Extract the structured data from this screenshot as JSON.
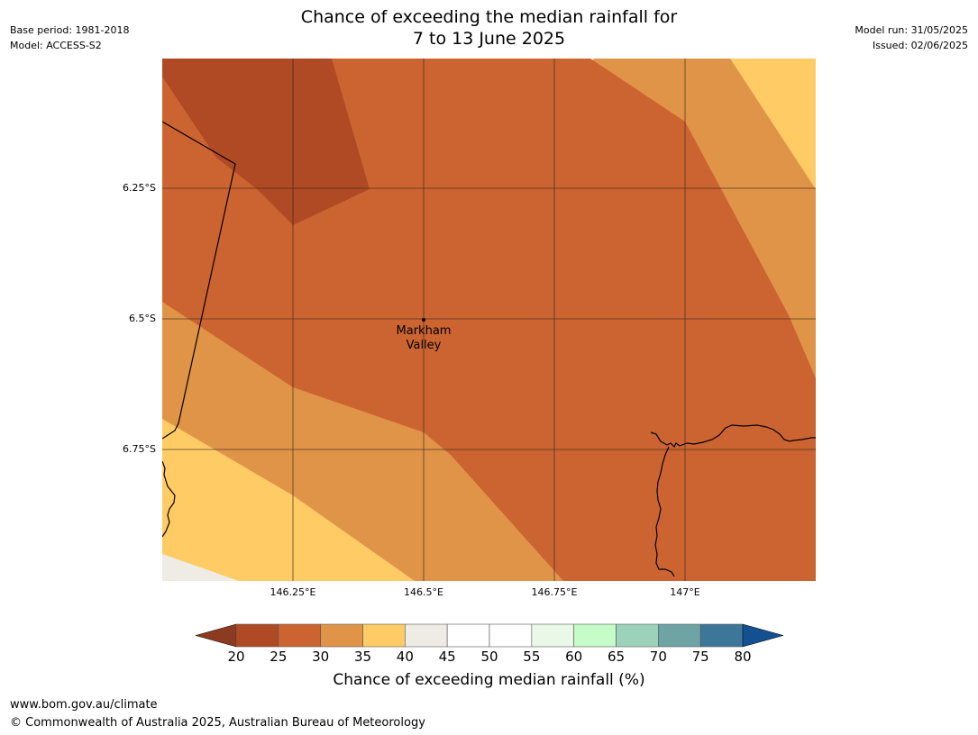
{
  "header": {
    "base_period": "Base period: 1981-2018",
    "model": "Model: ACCESS-S2",
    "model_run": "Model run: 31/05/2025",
    "issued": "Issued: 02/06/2025",
    "title_line1": "Chance of exceeding the median rainfall for",
    "title_line2": "7 to 13 June 2025"
  },
  "map": {
    "lat_labels": [
      "6.25°S",
      "6.5°S",
      "6.75°S"
    ],
    "lon_labels": [
      "146.25°E",
      "146.5°E",
      "146.75°E",
      "147°E"
    ],
    "place": {
      "name_line1": "Markham",
      "name_line2": "Valley",
      "lat": -6.5,
      "lon": 146.5
    },
    "bounds": {
      "lon_min": 146.0,
      "lon_max": 147.25,
      "lat_min": -7.0,
      "lat_max": -6.0
    },
    "land_fill_colors": {
      "20-25": "#b04a24",
      "25-30": "#cc6431",
      "30-35": "#e09448",
      "35-40": "#fecb65",
      "40-45": "#efece6"
    }
  },
  "colorbar": {
    "title": "Chance of exceeding median rainfall (%)",
    "ticks": [
      "20",
      "25",
      "30",
      "35",
      "40",
      "45",
      "50",
      "55",
      "60",
      "65",
      "70",
      "75",
      "80"
    ],
    "under_color": "#8c3b20",
    "over_color": "#12508f",
    "colors": [
      "#b04a24",
      "#cc6431",
      "#e09448",
      "#fecb65",
      "#efece6",
      "#ffffff",
      "#ffffff",
      "#eaf8e8",
      "#c5fcc7",
      "#9dd2ba",
      "#6ea4a4",
      "#3c7799"
    ]
  },
  "footer": {
    "url": "www.bom.gov.au/climate",
    "copyright": "© Commonwealth of Australia 2025, Australian Bureau of Meteorology"
  }
}
